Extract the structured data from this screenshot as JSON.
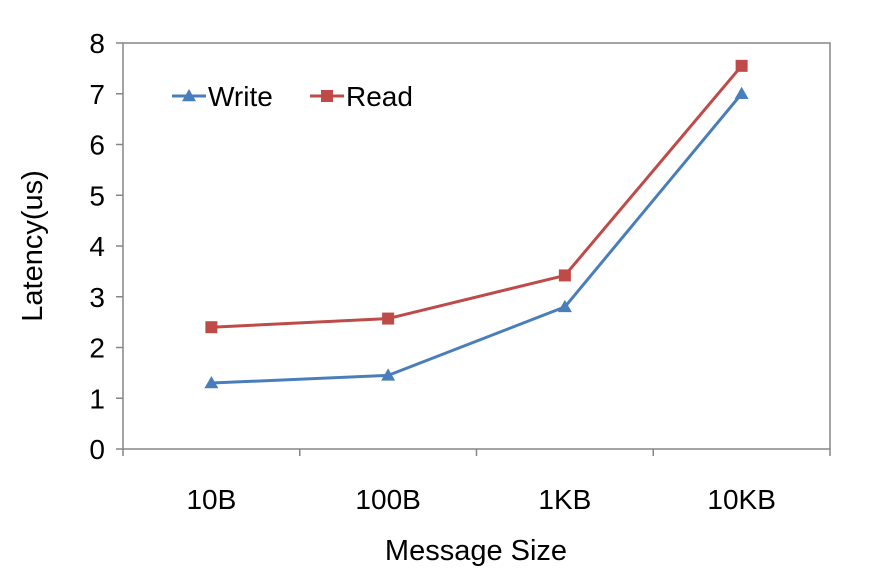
{
  "chart_data": {
    "type": "line",
    "categories": [
      "10B",
      "100B",
      "1KB",
      "10KB"
    ],
    "series": [
      {
        "name": "Write",
        "values": [
          1.3,
          1.45,
          2.8,
          7.0
        ],
        "color": "#4a7ebb",
        "marker": "triangle"
      },
      {
        "name": "Read",
        "values": [
          2.4,
          2.57,
          3.42,
          7.55
        ],
        "color": "#be4b48",
        "marker": "square"
      }
    ],
    "xlabel": "Message Size",
    "ylabel": "Latency(us)",
    "ylim": [
      0,
      8
    ],
    "yticks": [
      "0",
      "1",
      "2",
      "3",
      "4",
      "5",
      "6",
      "7",
      "8"
    ],
    "grid": false,
    "legend_position": "top-left"
  }
}
